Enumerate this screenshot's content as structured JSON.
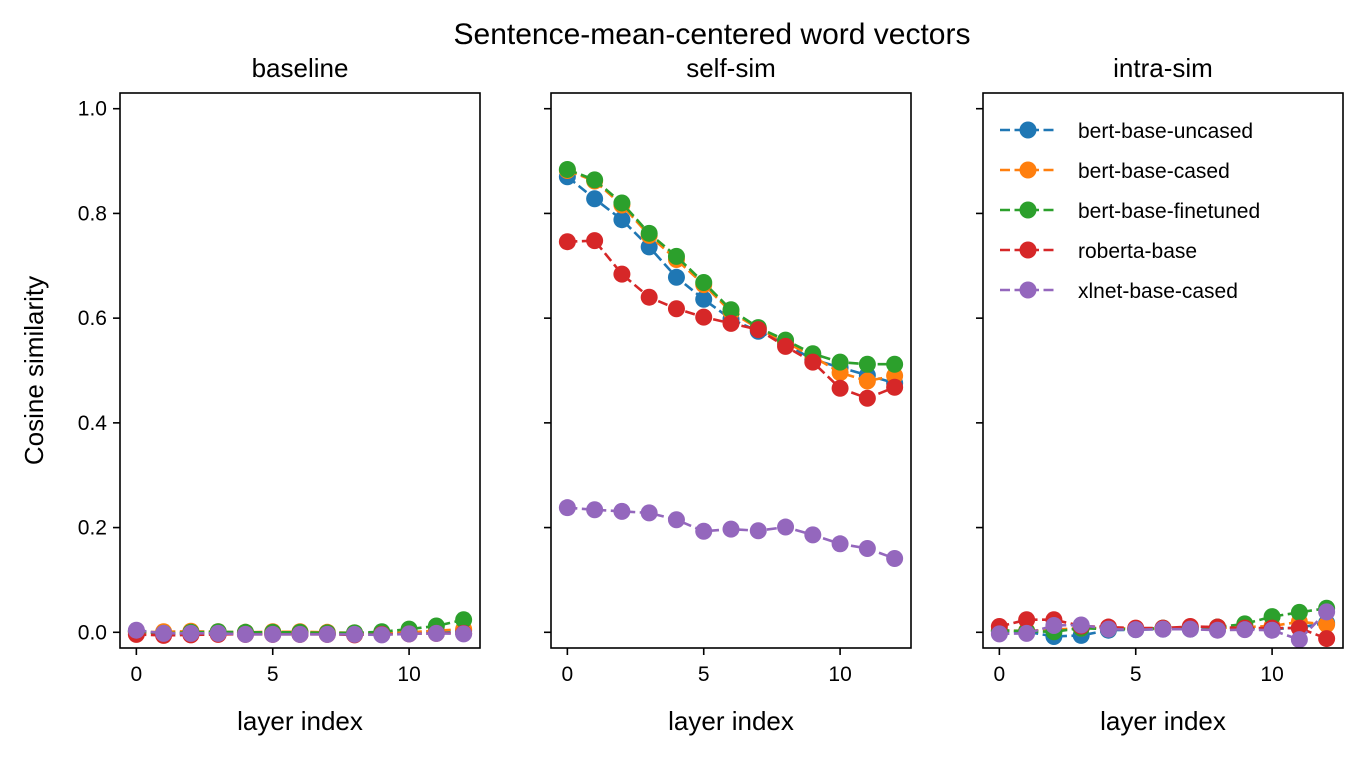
{
  "suptitle": "Sentence-mean-centered word vectors",
  "chart_data": {
    "type": "line",
    "x": [
      0,
      1,
      2,
      3,
      4,
      5,
      6,
      7,
      8,
      9,
      10,
      11,
      12
    ],
    "ylabel": "Cosine similarity",
    "xlabel": "layer index",
    "ylim": [
      -0.03,
      1.03
    ],
    "xlim": [
      -0.6,
      12.6
    ],
    "yticks": [
      0.0,
      0.2,
      0.4,
      0.6,
      0.8,
      1.0
    ],
    "ytick_labels": [
      "0.0",
      "0.2",
      "0.4",
      "0.6",
      "0.8",
      "1.0"
    ],
    "xticks": [
      0,
      5,
      10
    ],
    "xtick_labels": [
      "0",
      "5",
      "10"
    ],
    "sharey": true,
    "legend_location": "upper-right panel, top-left",
    "series_styles": [
      {
        "name": "bert-base-uncased",
        "color": "#1f77b4"
      },
      {
        "name": "bert-base-cased",
        "color": "#ff7f0e"
      },
      {
        "name": "bert-base-finetuned",
        "color": "#2ca02c"
      },
      {
        "name": "roberta-base",
        "color": "#d62728"
      },
      {
        "name": "xlnet-base-cased",
        "color": "#9467bd"
      }
    ],
    "panels": [
      {
        "title": "baseline",
        "show_ylabel": true,
        "series": [
          {
            "name": "bert-base-uncased",
            "values": [
              0.002,
              -0.003,
              -0.002,
              -0.001,
              -0.002,
              -0.002,
              -0.002,
              -0.003,
              -0.002,
              -0.002,
              0.0,
              0.002,
              0.003
            ]
          },
          {
            "name": "bert-base-cased",
            "values": [
              0.0,
              0.001,
              0.002,
              0.001,
              0.0,
              0.001,
              0.001,
              0.0,
              -0.001,
              -0.002,
              0.0,
              0.003,
              0.006
            ]
          },
          {
            "name": "bert-base-finetuned",
            "values": [
              0.002,
              -0.002,
              0.0,
              0.001,
              0.0,
              0.0,
              0.0,
              -0.001,
              -0.001,
              0.001,
              0.006,
              0.012,
              0.024
            ]
          },
          {
            "name": "roberta-base",
            "values": [
              -0.004,
              -0.006,
              -0.005,
              -0.004,
              -0.004,
              -0.004,
              -0.004,
              -0.004,
              -0.005,
              -0.004,
              -0.003,
              -0.002,
              -0.002
            ]
          },
          {
            "name": "xlnet-base-cased",
            "values": [
              0.004,
              -0.002,
              -0.002,
              -0.002,
              -0.004,
              -0.004,
              -0.004,
              -0.004,
              -0.004,
              -0.005,
              -0.003,
              -0.002,
              -0.003
            ]
          }
        ]
      },
      {
        "title": "self-sim",
        "show_ylabel": false,
        "series": [
          {
            "name": "bert-base-uncased",
            "values": [
              0.87,
              0.828,
              0.788,
              0.736,
              0.678,
              0.636,
              0.598,
              0.575,
              0.551,
              0.521,
              0.506,
              0.491,
              0.476
            ]
          },
          {
            "name": "bert-base-cased",
            "values": [
              0.882,
              0.862,
              0.816,
              0.758,
              0.712,
              0.664,
              0.612,
              0.58,
              0.554,
              0.527,
              0.496,
              0.48,
              0.49
            ]
          },
          {
            "name": "bert-base-finetuned",
            "values": [
              0.884,
              0.864,
              0.82,
              0.762,
              0.718,
              0.668,
              0.616,
              0.582,
              0.558,
              0.532,
              0.516,
              0.512,
              0.512
            ]
          },
          {
            "name": "roberta-base",
            "values": [
              0.746,
              0.748,
              0.684,
              0.64,
              0.618,
              0.602,
              0.59,
              0.578,
              0.546,
              0.516,
              0.466,
              0.447,
              0.468
            ]
          },
          {
            "name": "xlnet-base-cased",
            "values": [
              0.238,
              0.234,
              0.231,
              0.228,
              0.215,
              0.193,
              0.197,
              0.194,
              0.201,
              0.186,
              0.169,
              0.16,
              0.141
            ]
          }
        ]
      },
      {
        "title": "intra-sim",
        "show_ylabel": false,
        "series": [
          {
            "name": "bert-base-uncased",
            "values": [
              0.002,
              0.001,
              -0.008,
              -0.006,
              0.004,
              0.005,
              0.006,
              0.006,
              0.005,
              0.008,
              0.006,
              0.009,
              0.018
            ]
          },
          {
            "name": "bert-base-cased",
            "values": [
              0.003,
              0.003,
              0.005,
              0.008,
              0.008,
              0.007,
              0.007,
              0.009,
              0.008,
              0.01,
              0.012,
              0.02,
              0.015
            ]
          },
          {
            "name": "bert-base-finetuned",
            "values": [
              0.004,
              0.002,
              0.001,
              0.008,
              0.006,
              0.006,
              0.008,
              0.009,
              0.01,
              0.016,
              0.03,
              0.038,
              0.046
            ]
          },
          {
            "name": "roberta-base",
            "values": [
              0.011,
              0.024,
              0.024,
              0.012,
              0.01,
              0.008,
              0.008,
              0.011,
              0.01,
              0.008,
              0.008,
              0.008,
              -0.012
            ]
          },
          {
            "name": "xlnet-base-cased",
            "values": [
              -0.003,
              -0.002,
              0.013,
              0.014,
              0.006,
              0.005,
              0.006,
              0.006,
              0.004,
              0.005,
              0.004,
              -0.014,
              0.039
            ]
          }
        ]
      }
    ]
  }
}
